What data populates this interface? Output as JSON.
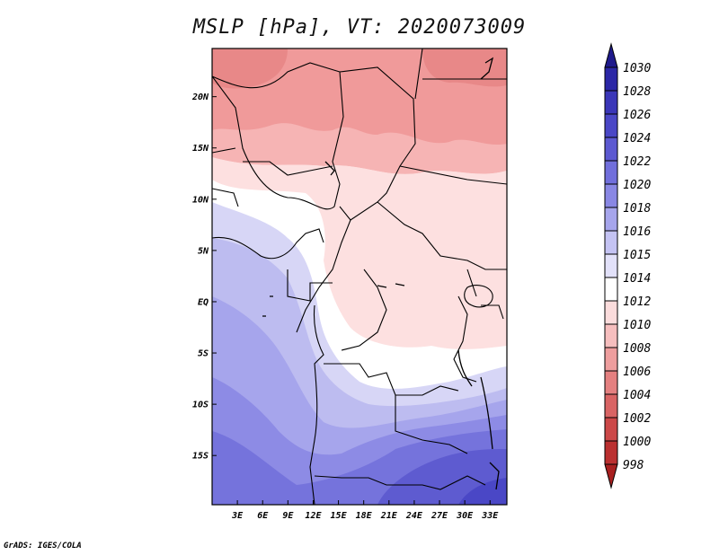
{
  "title": "MSLP [hPa], VT: 2020073009",
  "credit": "GrADS: IGES/COLA",
  "map": {
    "lat_ticks": [
      {
        "lat": 20,
        "label": "20N"
      },
      {
        "lat": 15,
        "label": "15N"
      },
      {
        "lat": 10,
        "label": "10N"
      },
      {
        "lat": 5,
        "label": "5N"
      },
      {
        "lat": 0,
        "label": "EQ"
      },
      {
        "lat": -5,
        "label": "5S"
      },
      {
        "lat": -10,
        "label": "10S"
      },
      {
        "lat": -15,
        "label": "15S"
      }
    ],
    "lon_ticks": [
      {
        "lon": 3,
        "label": "3E"
      },
      {
        "lon": 6,
        "label": "6E"
      },
      {
        "lon": 9,
        "label": "9E"
      },
      {
        "lon": 12,
        "label": "12E"
      },
      {
        "lon": 15,
        "label": "15E"
      },
      {
        "lon": 18,
        "label": "18E"
      },
      {
        "lon": 21,
        "label": "21E"
      },
      {
        "lon": 24,
        "label": "24E"
      },
      {
        "lon": 27,
        "label": "27E"
      },
      {
        "lon": 30,
        "label": "30E"
      },
      {
        "lon": 33,
        "label": "33E"
      }
    ]
  },
  "colorbar": {
    "labels": [
      "1030",
      "1028",
      "1026",
      "1024",
      "1022",
      "1020",
      "1018",
      "1016",
      "1015",
      "1014",
      "1012",
      "1010",
      "1008",
      "1006",
      "1004",
      "1002",
      "1000",
      "998"
    ],
    "colors": [
      "#1f1a8c",
      "#2b27a6",
      "#3a36b8",
      "#4a47c6",
      "#5c59d1",
      "#716fdc",
      "#8987e4",
      "#a6a5ec",
      "#c4c3f3",
      "#e2e1f9",
      "#ffffff",
      "#fbdcdc",
      "#f6bebe",
      "#ee9e9e",
      "#e48080",
      "#d96464",
      "#cc4848",
      "#bb3030",
      "#a82020"
    ]
  }
}
